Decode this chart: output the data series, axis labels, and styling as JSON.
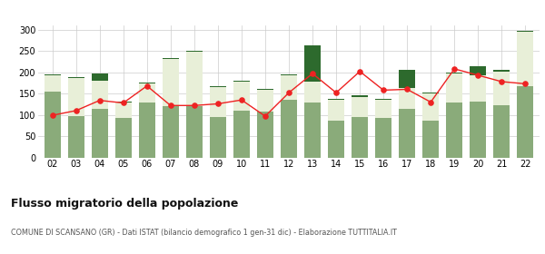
{
  "years": [
    "02",
    "03",
    "04",
    "05",
    "06",
    "07",
    "08",
    "09",
    "10",
    "11",
    "12",
    "13",
    "14",
    "15",
    "16",
    "17",
    "18",
    "19",
    "20",
    "21",
    "22"
  ],
  "iscritti_altri_comuni": [
    155,
    97,
    115,
    92,
    130,
    120,
    120,
    95,
    110,
    107,
    135,
    130,
    87,
    95,
    92,
    115,
    87,
    130,
    132,
    122,
    168
  ],
  "iscritti_estero": [
    38,
    90,
    65,
    38,
    43,
    112,
    128,
    70,
    68,
    52,
    58,
    48,
    49,
    47,
    43,
    48,
    63,
    68,
    60,
    80,
    127
  ],
  "iscritti_altri": [
    2,
    2,
    18,
    2,
    2,
    2,
    3,
    3,
    2,
    2,
    2,
    85,
    2,
    3,
    2,
    43,
    2,
    2,
    22,
    3,
    2
  ],
  "cancellati": [
    99,
    110,
    134,
    128,
    168,
    122,
    122,
    126,
    135,
    97,
    152,
    197,
    152,
    202,
    158,
    160,
    130,
    208,
    193,
    178,
    173
  ],
  "color_altri_comuni": "#8aab7a",
  "color_estero": "#e8efd8",
  "color_altri": "#2d6a2d",
  "color_cancellati": "#ee2222",
  "ylim": [
    0,
    310
  ],
  "yticks": [
    0,
    50,
    100,
    150,
    200,
    250,
    300
  ],
  "title": "Flusso migratorio della popolazione",
  "subtitle": "COMUNE DI SCANSANO (GR) - Dati ISTAT (bilancio demografico 1 gen-31 dic) - Elaborazione TUTTITALIA.IT",
  "background_color": "#ffffff",
  "grid_color": "#cccccc"
}
